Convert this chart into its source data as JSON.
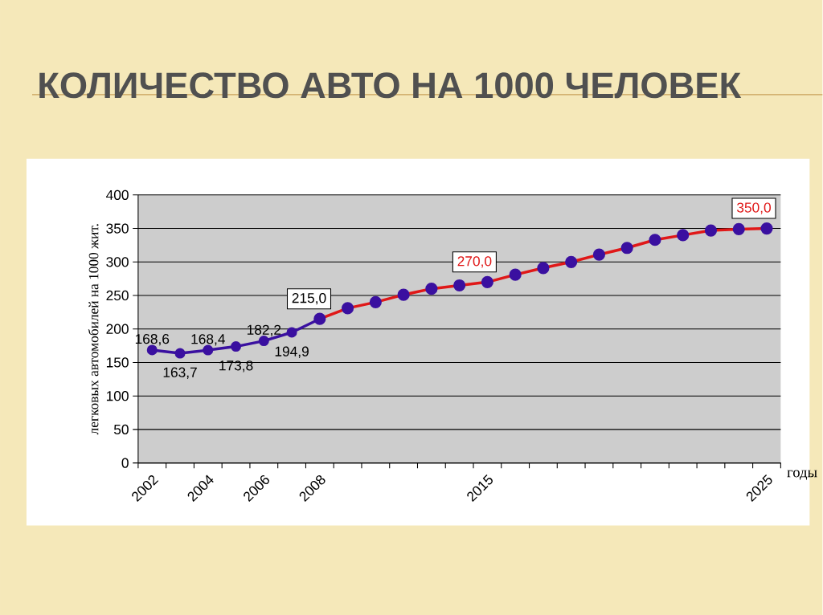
{
  "chart_data": {
    "type": "line",
    "title": "КОЛИЧЕСТВО АВТО НА 1000 ЧЕЛОВЕК",
    "ylabel": "легковых автомобилей на 1000 жит.",
    "xlabel": "годы",
    "categories": [
      "2002",
      null,
      "2004",
      null,
      "2006",
      null,
      "2008",
      null,
      null,
      null,
      null,
      null,
      "2015",
      null,
      null,
      null,
      null,
      null,
      null,
      null,
      null,
      null,
      "2025"
    ],
    "series": [
      {
        "color": "#3a10a0",
        "values": [
          168.6,
          163.7,
          168.4,
          173.8,
          182.2,
          194.9,
          215.0,
          null,
          null,
          null,
          null,
          null,
          null,
          null,
          null,
          null,
          null,
          null,
          null,
          null,
          null,
          null,
          null
        ],
        "value_labels": [
          "168,6",
          "163,7",
          "168,4",
          "173,8",
          "182,2",
          "194,9",
          "215,0",
          null,
          null,
          null,
          null,
          null,
          null,
          null,
          null,
          null,
          null,
          null,
          null,
          null,
          null,
          null,
          null
        ]
      },
      {
        "color": "#e01818",
        "values": [
          null,
          null,
          null,
          null,
          null,
          null,
          215.0,
          231,
          240,
          251,
          260,
          265,
          270.0,
          281,
          291,
          300,
          311,
          321,
          333,
          340,
          347,
          349,
          350.0
        ],
        "value_labels": [
          null,
          null,
          null,
          null,
          null,
          null,
          null,
          null,
          null,
          null,
          null,
          null,
          "270,0",
          null,
          null,
          null,
          null,
          null,
          null,
          null,
          null,
          null,
          "350,0"
        ]
      }
    ],
    "ylim": [
      0,
      400
    ],
    "yticks": [
      0,
      50,
      100,
      150,
      200,
      250,
      300,
      350,
      400
    ],
    "grid": "y",
    "marker": "circle",
    "line_style": "solid"
  }
}
